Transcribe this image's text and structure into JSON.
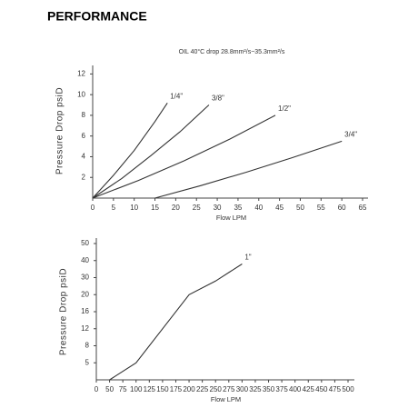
{
  "title": "PERFORMANCE",
  "chart_data": [
    {
      "type": "line",
      "subtitle": "OIL 40°C drop 28.8mm²/s~35.3mm²/s",
      "x_label": "Flow LPM",
      "y_label": "Pressure Drop psiD",
      "xlim": [
        0,
        65
      ],
      "ylim": [
        0,
        13
      ],
      "xscale": "linear",
      "yscale": "linear",
      "xticks": [
        0,
        5,
        10,
        15,
        20,
        25,
        30,
        35,
        40,
        45,
        50,
        55,
        60,
        65
      ],
      "yticks": [
        2,
        4,
        6,
        8,
        10,
        12
      ],
      "series": [
        {
          "name": "1/4\"",
          "color": "#333333",
          "x": [
            0,
            5,
            10,
            15,
            18
          ],
          "values": [
            0,
            2.2,
            4.6,
            7.4,
            9.2
          ]
        },
        {
          "name": "3/8\"",
          "color": "#333333",
          "x": [
            0,
            7,
            14,
            21,
            28
          ],
          "values": [
            0,
            1.9,
            4.1,
            6.4,
            9
          ]
        },
        {
          "name": "1/2\"",
          "color": "#333333",
          "x": [
            0,
            11,
            22,
            33,
            44
          ],
          "values": [
            0,
            1.7,
            3.6,
            5.7,
            8
          ]
        },
        {
          "name": "3/4\"",
          "color": "#333333",
          "x": [
            15,
            26,
            37,
            48,
            60
          ],
          "values": [
            0,
            1.2,
            2.5,
            3.9,
            5.5
          ]
        }
      ]
    },
    {
      "type": "line",
      "x_label": "Flow LPM",
      "y_label": "Pressure Drop psiD",
      "xlim": [
        0,
        500
      ],
      "ylim": [
        0,
        50
      ],
      "xscale": "tick-spaced",
      "yscale": "tick-spaced",
      "xticks": [
        0,
        50,
        75,
        100,
        125,
        150,
        175,
        200,
        225,
        250,
        275,
        300,
        325,
        350,
        375,
        400,
        425,
        450,
        475,
        500
      ],
      "yticks": [
        5,
        8,
        12,
        16,
        20,
        30,
        40,
        50
      ],
      "series": [
        {
          "name": "1\"",
          "color": "#333333",
          "x": [
            50,
            100,
            150,
            200,
            250,
            300
          ],
          "values": [
            0,
            5,
            12,
            20,
            28,
            38
          ]
        }
      ]
    }
  ]
}
